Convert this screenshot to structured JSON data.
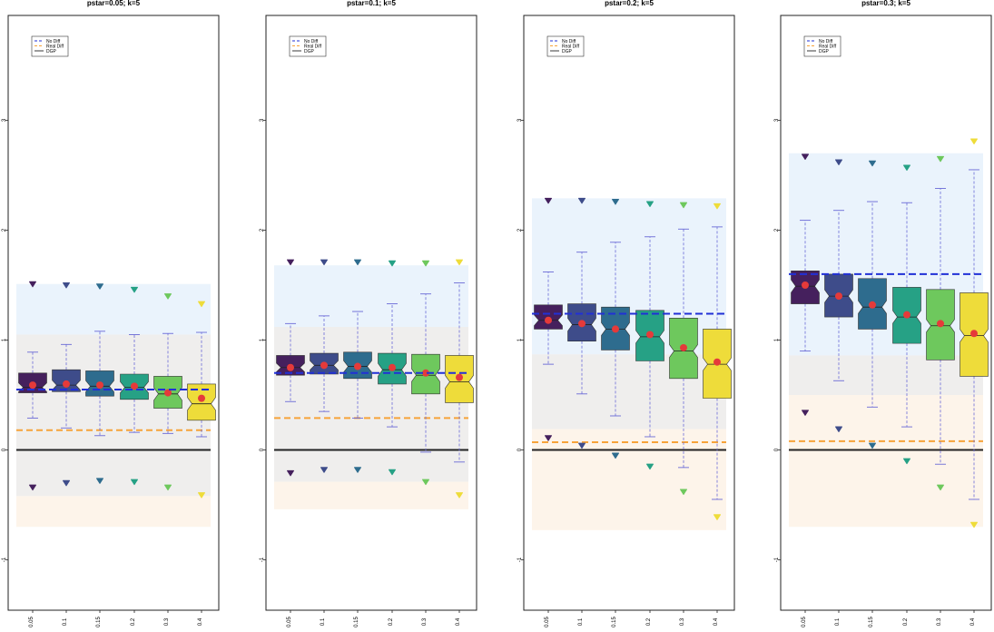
{
  "chart_data": [
    {
      "type": "box",
      "title": "pstar=0.05; k=5",
      "categories": [
        "0.05",
        "0.1",
        "0.15",
        "0.2",
        "0.3",
        "0.4"
      ],
      "yticks": [
        "-1",
        "0",
        "1",
        "2",
        "3"
      ],
      "ylim": [
        -1.45,
        4.0
      ],
      "bands": [
        {
          "from": 1.05,
          "to": 1.51,
          "color": "#eaf3fc"
        },
        {
          "from": -0.42,
          "to": 1.05,
          "color": "#efeeed"
        },
        {
          "from": -0.7,
          "to": -0.42,
          "color": "#fdf4ea"
        }
      ],
      "no_diff": 0.55,
      "real_diff": 0.18,
      "dgp": 0.0,
      "boxes": [
        {
          "q1": 0.52,
          "median": 0.57,
          "q3": 0.7,
          "whisker_low": 0.29,
          "whisker_high": 0.89,
          "mean": 0.59,
          "outlier_high": 1.51,
          "outlier_low": -0.34
        },
        {
          "q1": 0.53,
          "median": 0.59,
          "q3": 0.73,
          "whisker_low": 0.2,
          "whisker_high": 0.96,
          "mean": 0.6,
          "outlier_high": 1.5,
          "outlier_low": -0.3
        },
        {
          "q1": 0.49,
          "median": 0.58,
          "q3": 0.72,
          "whisker_low": 0.13,
          "whisker_high": 1.08,
          "mean": 0.59,
          "outlier_high": 1.49,
          "outlier_low": -0.28
        },
        {
          "q1": 0.46,
          "median": 0.57,
          "q3": 0.69,
          "whisker_low": 0.16,
          "whisker_high": 1.05,
          "mean": 0.58,
          "outlier_high": 1.46,
          "outlier_low": -0.29
        },
        {
          "q1": 0.38,
          "median": 0.51,
          "q3": 0.67,
          "whisker_low": 0.15,
          "whisker_high": 1.06,
          "mean": 0.52,
          "outlier_high": 1.4,
          "outlier_low": -0.34
        },
        {
          "q1": 0.27,
          "median": 0.42,
          "q3": 0.6,
          "whisker_low": 0.12,
          "whisker_high": 1.07,
          "mean": 0.47,
          "outlier_high": 1.33,
          "outlier_low": -0.41
        }
      ]
    },
    {
      "type": "box",
      "title": "pstar=0.1; k=5",
      "categories": [
        "0.05",
        "0.1",
        "0.15",
        "0.2",
        "0.3",
        "0.4"
      ],
      "yticks": [
        "-1",
        "0",
        "1",
        "2",
        "3"
      ],
      "ylim": [
        -1.45,
        4.0
      ],
      "bands": [
        {
          "from": 1.12,
          "to": 1.68,
          "color": "#eaf3fc"
        },
        {
          "from": -0.29,
          "to": 1.12,
          "color": "#efeeed"
        },
        {
          "from": -0.54,
          "to": -0.29,
          "color": "#fdf4ea"
        }
      ],
      "no_diff": 0.7,
      "real_diff": 0.29,
      "dgp": 0.0,
      "boxes": [
        {
          "q1": 0.68,
          "median": 0.75,
          "q3": 0.86,
          "whisker_low": 0.44,
          "whisker_high": 1.15,
          "mean": 0.75,
          "outlier_high": 1.71,
          "outlier_low": -0.21
        },
        {
          "q1": 0.69,
          "median": 0.77,
          "q3": 0.88,
          "whisker_low": 0.35,
          "whisker_high": 1.22,
          "mean": 0.77,
          "outlier_high": 1.71,
          "outlier_low": -0.18
        },
        {
          "q1": 0.65,
          "median": 0.76,
          "q3": 0.89,
          "whisker_low": 0.29,
          "whisker_high": 1.26,
          "mean": 0.76,
          "outlier_high": 1.71,
          "outlier_low": -0.18
        },
        {
          "q1": 0.6,
          "median": 0.73,
          "q3": 0.88,
          "whisker_low": 0.21,
          "whisker_high": 1.33,
          "mean": 0.75,
          "outlier_high": 1.7,
          "outlier_low": -0.2
        },
        {
          "q1": 0.51,
          "median": 0.68,
          "q3": 0.87,
          "whisker_low": -0.02,
          "whisker_high": 1.42,
          "mean": 0.7,
          "outlier_high": 1.7,
          "outlier_low": -0.29
        },
        {
          "q1": 0.43,
          "median": 0.62,
          "q3": 0.86,
          "whisker_low": -0.11,
          "whisker_high": 1.52,
          "mean": 0.66,
          "outlier_high": 1.71,
          "outlier_low": -0.41
        }
      ]
    },
    {
      "type": "box",
      "title": "pstar=0.2; k=5",
      "categories": [
        "0.05",
        "0.1",
        "0.15",
        "0.2",
        "0.3",
        "0.4"
      ],
      "yticks": [
        "-1",
        "0",
        "1",
        "2",
        "3"
      ],
      "ylim": [
        -1.45,
        4.0
      ],
      "bands": [
        {
          "from": 0.87,
          "to": 2.29,
          "color": "#eaf3fc"
        },
        {
          "from": 0.19,
          "to": 0.87,
          "color": "#efeeed"
        },
        {
          "from": -0.73,
          "to": 0.19,
          "color": "#fdf4ea"
        }
      ],
      "no_diff": 1.24,
      "real_diff": 0.07,
      "dgp": 0.0,
      "boxes": [
        {
          "q1": 1.1,
          "median": 1.18,
          "q3": 1.32,
          "whisker_low": 0.78,
          "whisker_high": 1.62,
          "mean": 1.18,
          "outlier_high": 2.27,
          "outlier_low": 0.11
        },
        {
          "q1": 0.99,
          "median": 1.14,
          "q3": 1.33,
          "whisker_low": 0.51,
          "whisker_high": 1.8,
          "mean": 1.15,
          "outlier_high": 2.27,
          "outlier_low": 0.04
        },
        {
          "q1": 0.91,
          "median": 1.1,
          "q3": 1.3,
          "whisker_low": 0.31,
          "whisker_high": 1.89,
          "mean": 1.1,
          "outlier_high": 2.26,
          "outlier_low": -0.05
        },
        {
          "q1": 0.81,
          "median": 1.03,
          "q3": 1.27,
          "whisker_low": 0.12,
          "whisker_high": 1.94,
          "mean": 1.05,
          "outlier_high": 2.24,
          "outlier_low": -0.15
        },
        {
          "q1": 0.65,
          "median": 0.9,
          "q3": 1.2,
          "whisker_low": -0.16,
          "whisker_high": 2.01,
          "mean": 0.93,
          "outlier_high": 2.23,
          "outlier_low": -0.38
        },
        {
          "q1": 0.47,
          "median": 0.78,
          "q3": 1.1,
          "whisker_low": -0.45,
          "whisker_high": 2.03,
          "mean": 0.8,
          "outlier_high": 2.22,
          "outlier_low": -0.61
        }
      ]
    },
    {
      "type": "box",
      "title": "pstar=0.3; k=5",
      "categories": [
        "0.05",
        "0.1",
        "0.15",
        "0.2",
        "0.3",
        "0.4"
      ],
      "yticks": [
        "-1",
        "0",
        "1",
        "2",
        "3"
      ],
      "ylim": [
        -1.45,
        4.0
      ],
      "bands": [
        {
          "from": 0.86,
          "to": 2.7,
          "color": "#eaf3fc"
        },
        {
          "from": 0.5,
          "to": 0.86,
          "color": "#efeeed"
        },
        {
          "from": -0.7,
          "to": 0.5,
          "color": "#fdf4ea"
        }
      ],
      "no_diff": 1.6,
      "real_diff": 0.08,
      "dgp": 0.0,
      "boxes": [
        {
          "q1": 1.33,
          "median": 1.49,
          "q3": 1.63,
          "whisker_low": 0.9,
          "whisker_high": 2.09,
          "mean": 1.5,
          "outlier_high": 2.67,
          "outlier_low": 0.34
        },
        {
          "q1": 1.21,
          "median": 1.4,
          "q3": 1.6,
          "whisker_low": 0.63,
          "whisker_high": 2.18,
          "mean": 1.4,
          "outlier_high": 2.62,
          "outlier_low": 0.19
        },
        {
          "q1": 1.1,
          "median": 1.3,
          "q3": 1.56,
          "whisker_low": 0.39,
          "whisker_high": 2.26,
          "mean": 1.32,
          "outlier_high": 2.61,
          "outlier_low": 0.04
        },
        {
          "q1": 0.97,
          "median": 1.21,
          "q3": 1.48,
          "whisker_low": 0.21,
          "whisker_high": 2.25,
          "mean": 1.23,
          "outlier_high": 2.57,
          "outlier_low": -0.1
        },
        {
          "q1": 0.82,
          "median": 1.13,
          "q3": 1.46,
          "whisker_low": -0.13,
          "whisker_high": 2.38,
          "mean": 1.15,
          "outlier_high": 2.65,
          "outlier_low": -0.34
        },
        {
          "q1": 0.67,
          "median": 1.04,
          "q3": 1.43,
          "whisker_low": -0.45,
          "whisker_high": 2.55,
          "mean": 1.06,
          "outlier_high": 2.81,
          "outlier_low": -0.68
        }
      ]
    }
  ],
  "legend": [
    "No Diff",
    "Real Diff",
    "DGP"
  ],
  "colors": {
    "boxes": [
      "#45205d",
      "#3e4c8a",
      "#2e6c8e",
      "#26a185",
      "#6ec85d",
      "#eedc3a"
    ],
    "no_diff": "#2130d6",
    "real_diff": "#f6a33a",
    "dgp": "#222222",
    "mean": "#e53a3a",
    "whisker": "#6a6ad6"
  }
}
